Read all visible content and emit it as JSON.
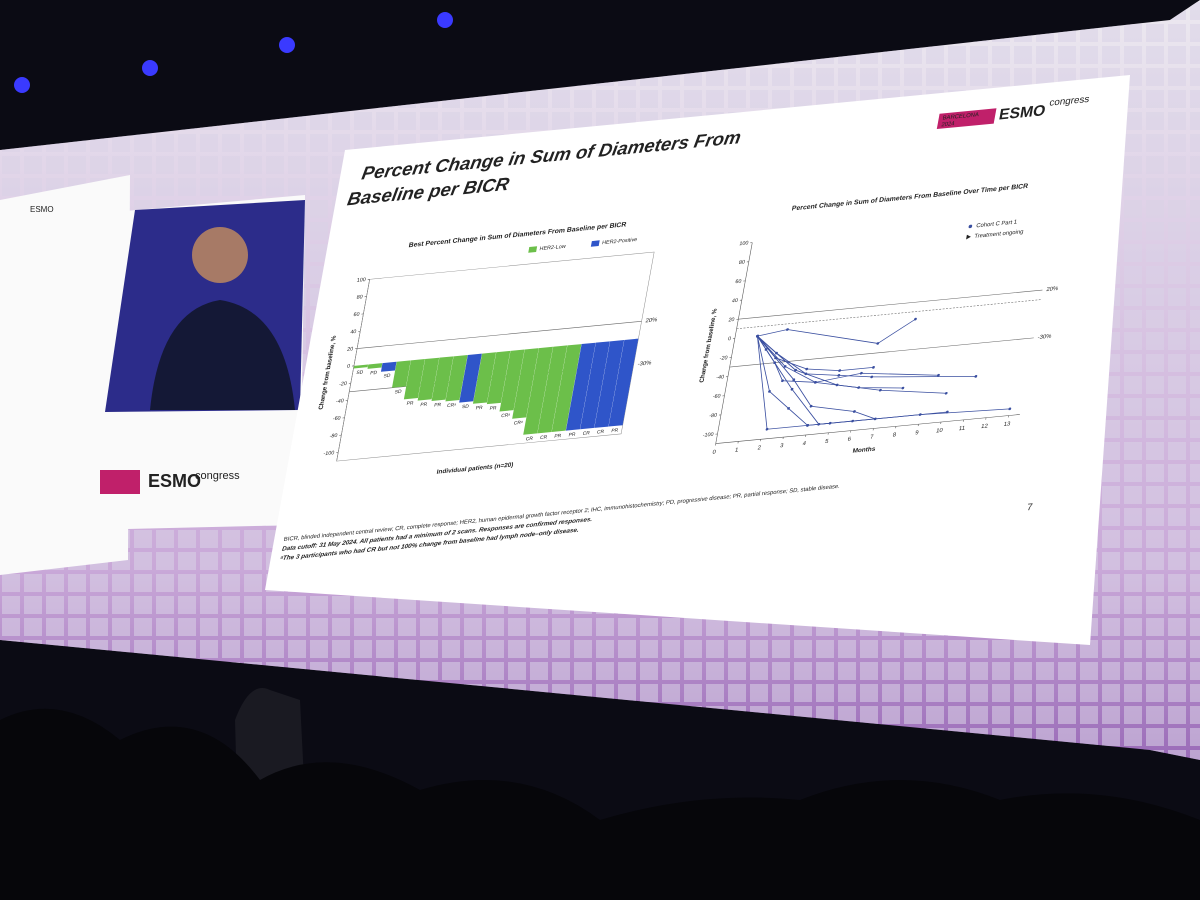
{
  "slide": {
    "title_lines": [
      "Percent Change in Sum of Diameters From",
      "Baseline per BICR"
    ],
    "logo": {
      "city": "BARCELONA",
      "year": "2024",
      "brand": "ESMO",
      "event": "congress"
    },
    "footnotes": [
      "BICR, blinded independent central review; CR, complete response; HER2, human epidermal growth factor receptor 2; IHC, immunohistochemistry; PD, progressive disease; PR, partial response; SD, stable disease.",
      "Data cutoff: 31 May 2024. All patients had a minimum of 2 scans. Responses are confirmed responses.",
      "ᵃThe 3 participants who had CR but not 100% change from baseline had lymph node–only disease."
    ],
    "page": "7"
  },
  "chart_data": [
    {
      "type": "bar",
      "title": "Best Percent Change in Sum of Diameters From Baseline per BICR",
      "ylabel": "Change from baseline, %",
      "xlabel": "Individual patients (n=20)",
      "categories": [
        "SD",
        "PD",
        "SD",
        "SD",
        "PR",
        "PR",
        "PR",
        "CRᵃ",
        "SD",
        "PR",
        "PR",
        "CRᵃ",
        "CRᵃ",
        "CR",
        "CR",
        "PR",
        "PR",
        "CR",
        "CR",
        "PR"
      ],
      "series": [
        {
          "name": "HER2-Low",
          "color": "#6cbf4a",
          "values": [
            -3,
            -5,
            null,
            -30,
            -45,
            -48,
            -50,
            -52,
            null,
            -58,
            -60,
            -70,
            -80,
            -100,
            -100,
            -100,
            null,
            null,
            null,
            null
          ]
        },
        {
          "name": "HER2-Positive",
          "color": "#2f55c9",
          "values": [
            null,
            null,
            -10,
            null,
            null,
            null,
            null,
            null,
            -55,
            null,
            null,
            null,
            null,
            null,
            null,
            null,
            -100,
            -100,
            -100,
            -100
          ]
        }
      ],
      "ylim": [
        -110,
        100
      ],
      "yticks": [
        -100,
        -80,
        -60,
        -40,
        -20,
        0,
        20,
        40,
        60,
        80,
        100
      ],
      "reference_lines": [
        {
          "value": 20,
          "label": "20%"
        },
        {
          "value": -30,
          "label": "-30%"
        }
      ],
      "legend": "top-right"
    },
    {
      "type": "line",
      "title": "Percent Change in Sum of Diameters From Baseline Over Time per BICR",
      "ylabel": "Change from baseline, %",
      "xlabel": "Months",
      "legend_labels": [
        "Cohort C Part 1",
        "Treatment ongoing"
      ],
      "color": "#3a4fa0",
      "series": [
        {
          "x": [
            1,
            2.3,
            6.5,
            8
          ],
          "values": [
            0,
            4,
            -20,
            2
          ]
        },
        {
          "x": [
            1,
            2,
            3.5,
            5,
            6.5,
            11.2
          ],
          "values": [
            0,
            -20,
            -45,
            -50,
            -55,
            -65
          ]
        },
        {
          "x": [
            1,
            2,
            2.5,
            4,
            6,
            9.5
          ],
          "values": [
            0,
            -30,
            -50,
            -55,
            -50,
            -60
          ]
        },
        {
          "x": [
            1,
            3,
            5,
            7,
            10
          ],
          "values": [
            0,
            -40,
            -60,
            -70,
            -80
          ]
        },
        {
          "x": [
            1,
            2.5,
            4,
            6,
            8
          ],
          "values": [
            0,
            -35,
            -55,
            -65,
            -70
          ]
        },
        {
          "x": [
            1,
            2,
            3,
            4,
            5
          ],
          "values": [
            0,
            -60,
            -80,
            -100,
            -100
          ]
        },
        {
          "x": [
            1,
            2.2,
            4,
            6,
            9,
            13
          ],
          "values": [
            0,
            -100,
            -100,
            -100,
            -100,
            -103
          ]
        },
        {
          "x": [
            1,
            3,
            4,
            6,
            7
          ],
          "values": [
            0,
            -50,
            -80,
            -90,
            -100
          ]
        },
        {
          "x": [
            1,
            2,
            3.5,
            5,
            6.5
          ],
          "values": [
            0,
            -25,
            -40,
            -45,
            -45
          ]
        },
        {
          "x": [
            1,
            1.5,
            3,
            4.5,
            10.2
          ],
          "values": [
            0,
            -15,
            -60,
            -100,
            -100
          ]
        }
      ],
      "xlim": [
        0,
        13.5
      ],
      "xticks": [
        0,
        1,
        2,
        3,
        4,
        5,
        6,
        7,
        8,
        9,
        10,
        11,
        12,
        13
      ],
      "ylim": [
        -110,
        100
      ],
      "yticks": [
        -100,
        -80,
        -60,
        -40,
        -20,
        0,
        20,
        40,
        60,
        80,
        100
      ],
      "reference_lines": [
        {
          "value": 20,
          "label": "20%"
        },
        {
          "value": -30,
          "label": "-30%"
        },
        {
          "value": 10,
          "style": "dashed"
        }
      ],
      "legend": "top-right"
    }
  ]
}
